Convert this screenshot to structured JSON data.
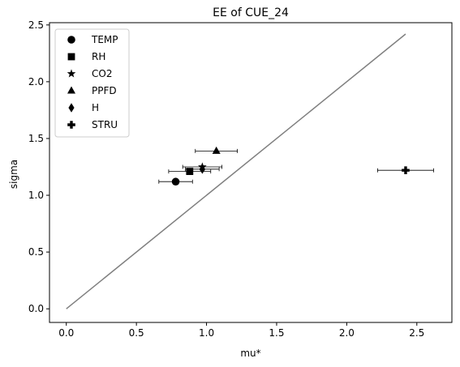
{
  "chart_data": {
    "type": "scatter",
    "title": "EE of CUE_24",
    "xlabel": "mu*",
    "ylabel": "sigma",
    "xlim": [
      -0.12,
      2.75
    ],
    "ylim": [
      -0.12,
      2.52
    ],
    "xticks": [
      0.0,
      0.5,
      1.0,
      1.5,
      2.0,
      2.5
    ],
    "yticks": [
      0.0,
      0.5,
      1.0,
      1.5,
      2.0,
      2.5
    ],
    "xtick_labels": [
      "0.0",
      "0.5",
      "1.0",
      "1.5",
      "2.0",
      "2.5"
    ],
    "ytick_labels": [
      "0.0",
      "0.5",
      "1.0",
      "1.5",
      "2.0",
      "2.5"
    ],
    "grid": false,
    "legend_position": "top-left",
    "reference_line": {
      "x": [
        0.0,
        2.42
      ],
      "y": [
        0.0,
        2.42
      ],
      "color": "#808080"
    },
    "series": [
      {
        "name": "TEMP",
        "marker": "circle",
        "x": 0.78,
        "y": 1.12,
        "xerr": [
          0.66,
          0.9
        ]
      },
      {
        "name": "RH",
        "marker": "square",
        "x": 0.88,
        "y": 1.21,
        "xerr": [
          0.73,
          1.03
        ]
      },
      {
        "name": "CO2",
        "marker": "star",
        "x": 0.97,
        "y": 1.25,
        "xerr": [
          0.83,
          1.11
        ]
      },
      {
        "name": "PPFD",
        "marker": "triangle",
        "x": 1.07,
        "y": 1.39,
        "xerr": [
          0.92,
          1.22
        ]
      },
      {
        "name": "H",
        "marker": "diamond",
        "x": 0.97,
        "y": 1.23,
        "xerr": [
          0.85,
          1.09
        ]
      },
      {
        "name": "STRU",
        "marker": "plus",
        "x": 2.42,
        "y": 1.22,
        "xerr": [
          2.22,
          2.62
        ]
      }
    ],
    "colors": {
      "marker": "#000000",
      "errorbar": "#000000",
      "axes": "#000000"
    }
  }
}
